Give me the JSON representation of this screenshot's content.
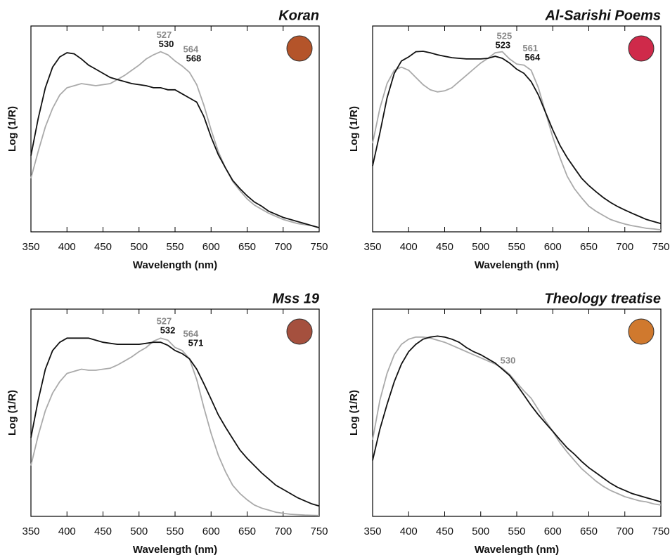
{
  "chart_data": [
    {
      "type": "line",
      "title": "Koran",
      "xlabel": "Wavelength (nm)",
      "ylabel": "Log (1/R)",
      "x": [
        350,
        360,
        370,
        380,
        390,
        400,
        410,
        420,
        430,
        440,
        450,
        460,
        470,
        480,
        490,
        500,
        510,
        520,
        530,
        540,
        550,
        560,
        570,
        580,
        590,
        600,
        610,
        620,
        630,
        640,
        650,
        660,
        670,
        680,
        690,
        700,
        710,
        720,
        730,
        740,
        750
      ],
      "series": [
        {
          "color": "#aaaaaa",
          "values": [
            0.26,
            0.39,
            0.51,
            0.6,
            0.665,
            0.7,
            0.71,
            0.72,
            0.715,
            0.71,
            0.715,
            0.72,
            0.74,
            0.76,
            0.785,
            0.81,
            0.84,
            0.86,
            0.875,
            0.86,
            0.83,
            0.805,
            0.775,
            0.715,
            0.615,
            0.495,
            0.39,
            0.31,
            0.245,
            0.2,
            0.16,
            0.13,
            0.11,
            0.09,
            0.075,
            0.06,
            0.05,
            0.04,
            0.035,
            0.03,
            0.02
          ]
        },
        {
          "color": "#111111",
          "values": [
            0.37,
            0.55,
            0.7,
            0.8,
            0.85,
            0.87,
            0.865,
            0.84,
            0.81,
            0.79,
            0.77,
            0.75,
            0.74,
            0.73,
            0.72,
            0.715,
            0.71,
            0.7,
            0.7,
            0.69,
            0.69,
            0.67,
            0.65,
            0.63,
            0.56,
            0.46,
            0.375,
            0.31,
            0.25,
            0.21,
            0.175,
            0.145,
            0.125,
            0.1,
            0.085,
            0.07,
            0.06,
            0.05,
            0.04,
            0.03,
            0.02
          ]
        }
      ],
      "xlim": [
        350,
        750
      ],
      "ylim": [
        0,
        1
      ],
      "xticks": [
        350,
        400,
        450,
        500,
        550,
        600,
        650,
        700,
        750
      ],
      "annotations": [
        [
          {
            "value": 527,
            "color": "#888888"
          },
          {
            "value": 530,
            "color": "#111111"
          }
        ],
        [
          {
            "value": 564,
            "color": "#888888"
          },
          {
            "value": 568,
            "color": "#111111"
          }
        ]
      ],
      "swatch_color": "#b4542a"
    },
    {
      "type": "line",
      "title": "Al-Sarishi Poems",
      "xlabel": "Wavelength (nm)",
      "ylabel": "Log (1/R)",
      "x": [
        350,
        360,
        370,
        380,
        390,
        400,
        410,
        420,
        430,
        440,
        450,
        460,
        470,
        480,
        490,
        500,
        510,
        520,
        530,
        540,
        550,
        560,
        570,
        580,
        590,
        600,
        610,
        620,
        630,
        640,
        650,
        660,
        670,
        680,
        690,
        700,
        710,
        720,
        730,
        740,
        750
      ],
      "series": [
        {
          "color": "#aaaaaa",
          "values": [
            0.43,
            0.6,
            0.72,
            0.785,
            0.8,
            0.785,
            0.75,
            0.715,
            0.69,
            0.68,
            0.685,
            0.7,
            0.73,
            0.76,
            0.79,
            0.82,
            0.843,
            0.87,
            0.875,
            0.84,
            0.815,
            0.81,
            0.785,
            0.7,
            0.58,
            0.46,
            0.36,
            0.27,
            0.21,
            0.165,
            0.125,
            0.1,
            0.08,
            0.06,
            0.048,
            0.038,
            0.03,
            0.024,
            0.017,
            0.014,
            0.01
          ]
        },
        {
          "color": "#111111",
          "values": [
            0.32,
            0.48,
            0.65,
            0.77,
            0.83,
            0.85,
            0.875,
            0.877,
            0.87,
            0.86,
            0.853,
            0.846,
            0.843,
            0.84,
            0.84,
            0.84,
            0.843,
            0.853,
            0.843,
            0.82,
            0.79,
            0.77,
            0.73,
            0.665,
            0.58,
            0.495,
            0.42,
            0.36,
            0.31,
            0.26,
            0.225,
            0.195,
            0.167,
            0.143,
            0.123,
            0.106,
            0.09,
            0.075,
            0.06,
            0.05,
            0.04
          ]
        }
      ],
      "xlim": [
        350,
        750
      ],
      "ylim": [
        0,
        1
      ],
      "xticks": [
        350,
        400,
        450,
        500,
        550,
        600,
        650,
        700,
        750
      ],
      "annotations": [
        [
          {
            "value": 525,
            "color": "#888888"
          },
          {
            "value": 523,
            "color": "#111111"
          }
        ],
        [
          {
            "value": 561,
            "color": "#888888"
          },
          {
            "value": 564,
            "color": "#111111"
          }
        ]
      ],
      "swatch_color": "#cf2a4a"
    },
    {
      "type": "line",
      "title": "Mss 19",
      "xlabel": "Wavelength (nm)",
      "ylabel": "Log (1/R)",
      "x": [
        350,
        360,
        370,
        380,
        390,
        400,
        410,
        420,
        430,
        440,
        450,
        460,
        470,
        480,
        490,
        500,
        510,
        520,
        530,
        540,
        550,
        560,
        570,
        580,
        590,
        600,
        610,
        620,
        630,
        640,
        650,
        660,
        670,
        680,
        690,
        700,
        710,
        720,
        730,
        740,
        750
      ],
      "series": [
        {
          "color": "#aaaaaa",
          "values": [
            0.245,
            0.39,
            0.51,
            0.595,
            0.65,
            0.69,
            0.7,
            0.71,
            0.705,
            0.705,
            0.71,
            0.715,
            0.73,
            0.75,
            0.77,
            0.795,
            0.815,
            0.845,
            0.86,
            0.85,
            0.815,
            0.8,
            0.76,
            0.66,
            0.525,
            0.4,
            0.295,
            0.215,
            0.15,
            0.11,
            0.08,
            0.055,
            0.04,
            0.03,
            0.02,
            0.015,
            0.01,
            0.008,
            0.006,
            0.005,
            0.004
          ]
        },
        {
          "color": "#111111",
          "values": [
            0.38,
            0.56,
            0.71,
            0.8,
            0.84,
            0.86,
            0.86,
            0.86,
            0.86,
            0.85,
            0.84,
            0.835,
            0.83,
            0.83,
            0.83,
            0.83,
            0.835,
            0.84,
            0.84,
            0.825,
            0.8,
            0.785,
            0.76,
            0.71,
            0.64,
            0.565,
            0.49,
            0.43,
            0.375,
            0.32,
            0.28,
            0.245,
            0.21,
            0.18,
            0.15,
            0.13,
            0.11,
            0.09,
            0.075,
            0.06,
            0.05
          ]
        }
      ],
      "xlim": [
        350,
        750
      ],
      "ylim": [
        0,
        1
      ],
      "xticks": [
        350,
        400,
        450,
        500,
        550,
        600,
        650,
        700,
        750
      ],
      "annotations": [
        [
          {
            "value": 527,
            "color": "#888888"
          },
          {
            "value": 532,
            "color": "#111111"
          }
        ],
        [
          {
            "value": 564,
            "color": "#888888"
          },
          {
            "value": 571,
            "color": "#111111"
          }
        ]
      ],
      "swatch_color": "#a5503e"
    },
    {
      "type": "line",
      "title": "Theology treatise",
      "xlabel": "Wavelength (nm)",
      "ylabel": "Log (1/R)",
      "x": [
        350,
        360,
        370,
        380,
        390,
        400,
        410,
        420,
        430,
        440,
        450,
        460,
        470,
        480,
        490,
        500,
        510,
        520,
        530,
        540,
        550,
        560,
        570,
        580,
        590,
        600,
        610,
        620,
        630,
        640,
        650,
        660,
        670,
        680,
        690,
        700,
        710,
        720,
        730,
        740,
        750
      ],
      "series": [
        {
          "color": "#aaaaaa",
          "values": [
            0.37,
            0.56,
            0.69,
            0.78,
            0.83,
            0.855,
            0.865,
            0.865,
            0.86,
            0.85,
            0.84,
            0.825,
            0.81,
            0.795,
            0.78,
            0.765,
            0.75,
            0.735,
            0.715,
            0.685,
            0.645,
            0.605,
            0.57,
            0.515,
            0.46,
            0.41,
            0.355,
            0.31,
            0.27,
            0.23,
            0.2,
            0.17,
            0.145,
            0.125,
            0.11,
            0.095,
            0.085,
            0.075,
            0.07,
            0.06,
            0.055
          ]
        },
        {
          "color": "#111111",
          "values": [
            0.27,
            0.42,
            0.54,
            0.65,
            0.735,
            0.795,
            0.83,
            0.855,
            0.865,
            0.87,
            0.865,
            0.855,
            0.84,
            0.815,
            0.795,
            0.78,
            0.76,
            0.74,
            0.71,
            0.68,
            0.635,
            0.585,
            0.535,
            0.49,
            0.45,
            0.41,
            0.37,
            0.33,
            0.3,
            0.265,
            0.235,
            0.21,
            0.185,
            0.16,
            0.14,
            0.125,
            0.11,
            0.1,
            0.09,
            0.08,
            0.07
          ]
        }
      ],
      "xlim": [
        350,
        750
      ],
      "ylim": [
        0,
        1
      ],
      "xticks": [
        350,
        400,
        450,
        500,
        550,
        600,
        650,
        700,
        750
      ],
      "annotations": [
        [
          {
            "value": 530,
            "color": "#888888"
          }
        ]
      ],
      "swatch_color": "#d0792e"
    }
  ]
}
